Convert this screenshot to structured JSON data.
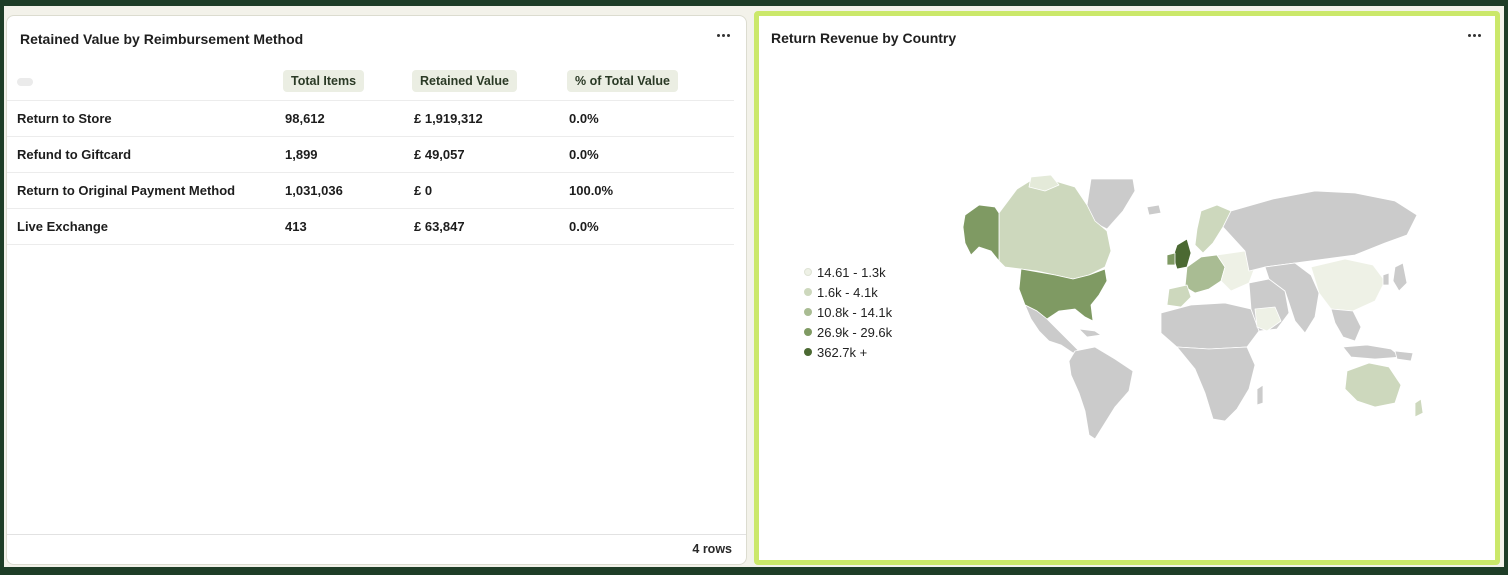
{
  "left_card": {
    "title": "Retained Value by Reimbursement Method",
    "columns": [
      "",
      "Total Items",
      "Retained Value",
      "% of Total Value"
    ],
    "rows": [
      {
        "method": "Return to Store",
        "items": "98,612",
        "retained": "£ 1,919,312",
        "pct": "0.0%"
      },
      {
        "method": "Refund to Giftcard",
        "items": "1,899",
        "retained": "£ 49,057",
        "pct": "0.0%"
      },
      {
        "method": "Return to Original Payment Method",
        "items": "1,031,036",
        "retained": "£ 0",
        "pct": "100.0%"
      },
      {
        "method": "Live Exchange",
        "items": "413",
        "retained": "£ 63,847",
        "pct": "0.0%"
      }
    ],
    "footer": "4 rows"
  },
  "right_card": {
    "title": "Return Revenue by Country",
    "legend": [
      {
        "label": "14.61 - 1.3k",
        "color": "#eef1e6"
      },
      {
        "label": "1.6k - 4.1k",
        "color": "#cdd8bd"
      },
      {
        "label": "10.8k - 14.1k",
        "color": "#a9bc93"
      },
      {
        "label": "26.9k - 29.6k",
        "color": "#7f9a63"
      },
      {
        "label": "362.7k +",
        "color": "#4b6932"
      }
    ],
    "no_data_color": "#cbcbcb"
  }
}
